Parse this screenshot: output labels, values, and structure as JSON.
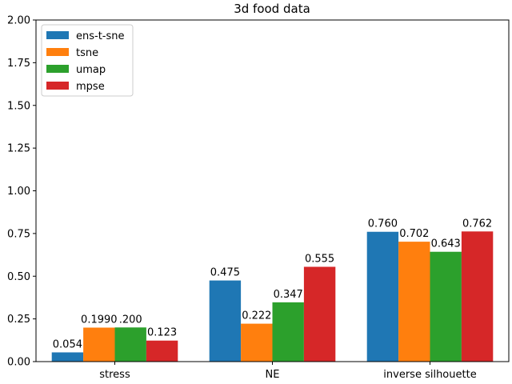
{
  "chart_data": {
    "type": "bar",
    "title": "3d food data",
    "xlabel": "",
    "ylabel": "",
    "categories": [
      "stress",
      "NE",
      "inverse silhouette"
    ],
    "series": [
      {
        "name": "ens-t-sne",
        "color": "#1f77b4",
        "values": [
          0.054,
          0.475,
          0.76
        ],
        "labels": [
          "0.054",
          "0.475",
          "0.760"
        ]
      },
      {
        "name": "tsne",
        "color": "#ff7f0e",
        "values": [
          0.199,
          0.222,
          0.702
        ],
        "labels": [
          "0.1990",
          "0.222",
          "0.702"
        ]
      },
      {
        "name": "umap",
        "color": "#2ca02c",
        "values": [
          0.2,
          0.347,
          0.643
        ],
        "labels": [
          ".200",
          "0.347",
          "0.643"
        ]
      },
      {
        "name": "mpse",
        "color": "#d62728",
        "values": [
          0.123,
          0.555,
          0.762
        ],
        "labels": [
          "0.123",
          "0.555",
          "0.762"
        ]
      }
    ],
    "ylim": [
      0,
      2.0
    ],
    "yticks": [
      "0.00",
      "0.25",
      "0.50",
      "0.75",
      "1.00",
      "1.25",
      "1.50",
      "1.75",
      "2.00"
    ],
    "grid": false,
    "legend_position": "top-left"
  }
}
